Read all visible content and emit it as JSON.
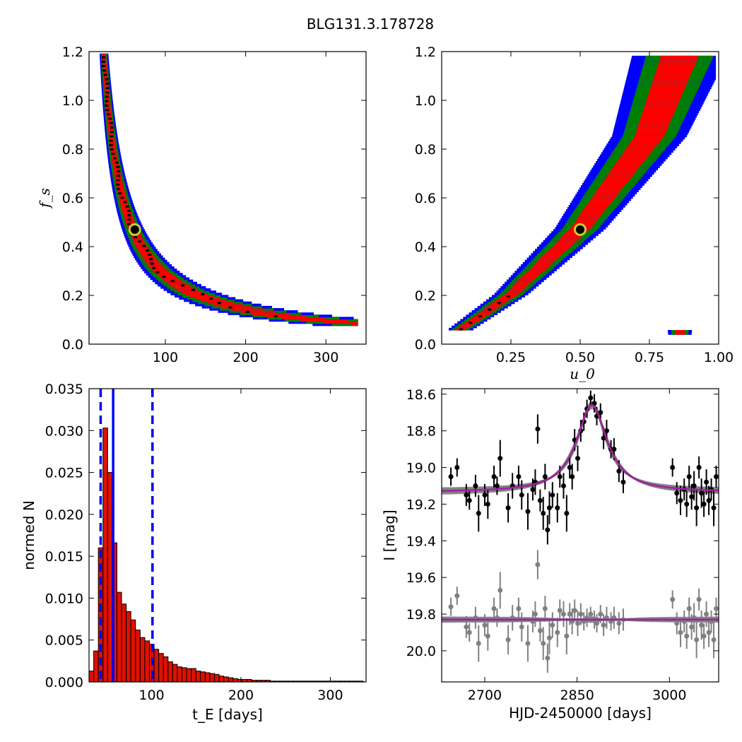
{
  "title": "BLG131.3.178728",
  "colors": {
    "sigma1": "#ff0000",
    "sigma2": "#008000",
    "sigma3": "#0000ff",
    "peak": "#000000",
    "best_fit_marker": "#cccc33",
    "hist_bar": "#dd1100",
    "hist_lines": "#0000ff",
    "data_black": "#000000",
    "data_gray": "#808080",
    "model_gray": "#808080",
    "model_best": "#a020a0"
  },
  "chart_data": [
    {
      "id": "te-fs",
      "type": "heatmap",
      "xlabel": "",
      "ylabel": "f_s",
      "xlim": [
        5,
        350
      ],
      "ylim": [
        0,
        1.2
      ],
      "xticks": [
        100,
        200,
        300
      ],
      "xticklabels": [
        "100",
        "200",
        "300"
      ],
      "yticks": [
        0.0,
        0.2,
        0.4,
        0.6,
        0.8,
        1.0,
        1.2
      ],
      "yticklabels": [
        "0.0",
        "0.2",
        "0.4",
        "0.6",
        "0.8",
        "1.0",
        "1.2"
      ],
      "relation": "t_E * f_s ~ 28 (posterior ridge)",
      "ridge_constant": 28,
      "best_fit": {
        "x": 62,
        "y": 0.47
      },
      "confidence_levels": [
        "1-sigma (red)",
        "2-sigma (green)",
        "3-sigma (blue)",
        "peak (black)"
      ],
      "curve_extent_x": [
        30,
        340
      ]
    },
    {
      "id": "u0-fs",
      "type": "heatmap",
      "xlabel": "u_0",
      "ylabel": "",
      "xlim": [
        0,
        1
      ],
      "ylim": [
        0,
        1.2
      ],
      "xticks": [
        0.25,
        0.5,
        0.75,
        1.0
      ],
      "xticklabels": [
        "0.25",
        "0.50",
        "0.75",
        "1.00"
      ],
      "yticks": [
        0.0,
        0.2,
        0.4,
        0.6,
        0.8,
        1.0,
        1.2
      ],
      "yticklabels": [
        "0.0",
        "0.2",
        "0.4",
        "0.6",
        "0.8",
        "1.0",
        "1.2"
      ],
      "relation": "f_s increases with u_0 along a band",
      "ridge": [
        [
          0.06,
          0.05
        ],
        [
          0.25,
          0.2
        ],
        [
          0.5,
          0.47
        ],
        [
          0.75,
          0.85
        ],
        [
          0.86,
          1.18
        ]
      ],
      "best_fit": {
        "x": 0.5,
        "y": 0.47
      }
    },
    {
      "id": "te-hist",
      "type": "bar",
      "xlabel": "t_E  [days]",
      "ylabel": "normed N",
      "xlim": [
        30,
        340
      ],
      "ylim": [
        0,
        0.035
      ],
      "xticks": [
        100,
        200,
        300
      ],
      "xticklabels": [
        "100",
        "200",
        "300"
      ],
      "yticks": [
        0.0,
        0.005,
        0.01,
        0.015,
        0.02,
        0.025,
        0.03,
        0.035
      ],
      "yticklabels": [
        "0.000",
        "0.005",
        "0.010",
        "0.015",
        "0.020",
        "0.025",
        "0.030",
        "0.035"
      ],
      "bin_width": 5.2,
      "bins_start": 30,
      "values": [
        0.0013,
        0.0037,
        0.016,
        0.0303,
        0.025,
        0.0166,
        0.0107,
        0.0093,
        0.0084,
        0.0074,
        0.0062,
        0.0053,
        0.0049,
        0.0045,
        0.0039,
        0.0034,
        0.003,
        0.0024,
        0.0021,
        0.0018,
        0.0017,
        0.0016,
        0.0016,
        0.0013,
        0.0012,
        0.0011,
        0.001,
        0.0009,
        0.0007,
        0.0006,
        0.0005,
        0.0004,
        0.0003,
        0.0003,
        0.0003,
        0.0002,
        0.0002,
        0.0002,
        0.0002,
        0.0001,
        0.0001,
        0.0001,
        0.0001,
        0.0001,
        0.0001,
        0.0001,
        0.0001,
        0.0001,
        0.0001,
        0.0001,
        0.0001,
        0.0001,
        0.0001,
        0.0001,
        0.0001,
        0.0001,
        0.0001,
        0.0001,
        0.0001
      ],
      "median": 57,
      "bounds": [
        43,
        101
      ]
    },
    {
      "id": "lightcurve",
      "type": "scatter",
      "xlabel": "HJD-2450000 [days]",
      "ylabel": "I [mag]",
      "xlim": [
        2630,
        3080
      ],
      "ylim": [
        20.17,
        18.57
      ],
      "y_inverted": true,
      "xticks": [
        2700,
        2850,
        3000
      ],
      "xticklabels": [
        "2700",
        "2850",
        "3000"
      ],
      "yticks": [
        18.6,
        18.8,
        19.0,
        19.2,
        19.4,
        19.6,
        19.8,
        20.0
      ],
      "yticklabels": [
        "18.6",
        "18.8",
        "19.0",
        "19.2",
        "19.4",
        "19.6",
        "19.8",
        "20.0"
      ],
      "model": {
        "t0": 2874,
        "baseline": 19.135,
        "peak": 18.66,
        "width": 30
      },
      "residual_baseline": 19.83,
      "series": [
        {
          "name": "",
          "color": "black",
          "points": [
            [
              2645,
              19.05,
              0.05
            ],
            [
              2655,
              19.0,
              0.05
            ],
            [
              2670,
              19.15,
              0.06
            ],
            [
              2675,
              19.18,
              0.05
            ],
            [
              2685,
              19.1,
              0.06
            ],
            [
              2690,
              19.25,
              0.1
            ],
            [
              2700,
              19.15,
              0.06
            ],
            [
              2705,
              19.2,
              0.08
            ],
            [
              2715,
              19.05,
              0.06
            ],
            [
              2720,
              19.1,
              0.05
            ],
            [
              2725,
              18.95,
              0.1
            ],
            [
              2738,
              19.22,
              0.08
            ],
            [
              2745,
              19.1,
              0.07
            ],
            [
              2755,
              19.05,
              0.06
            ],
            [
              2760,
              19.15,
              0.08
            ],
            [
              2770,
              19.24,
              0.1
            ],
            [
              2778,
              19.12,
              0.06
            ],
            [
              2782,
              19.08,
              0.07
            ],
            [
              2786,
              18.79,
              0.08
            ],
            [
              2790,
              19.18,
              0.06
            ],
            [
              2795,
              19.25,
              0.09
            ],
            [
              2798,
              19.05,
              0.07
            ],
            [
              2802,
              19.34,
              0.08
            ],
            [
              2805,
              19.22,
              0.09
            ],
            [
              2810,
              19.15,
              0.07
            ],
            [
              2818,
              19.22,
              0.08
            ],
            [
              2822,
              19.05,
              0.06
            ],
            [
              2828,
              19.1,
              0.07
            ],
            [
              2833,
              19.25,
              0.1
            ],
            [
              2838,
              19.0,
              0.06
            ],
            [
              2842,
              19.05,
              0.07
            ],
            [
              2846,
              18.85,
              0.06
            ],
            [
              2851,
              18.95,
              0.07
            ],
            [
              2856,
              18.8,
              0.06
            ],
            [
              2861,
              18.75,
              0.05
            ],
            [
              2866,
              18.68,
              0.05
            ],
            [
              2872,
              18.62,
              0.04
            ],
            [
              2878,
              18.65,
              0.05
            ],
            [
              2882,
              18.72,
              0.05
            ],
            [
              2888,
              18.7,
              0.05
            ],
            [
              2893,
              18.84,
              0.06
            ],
            [
              2898,
              18.8,
              0.06
            ],
            [
              2905,
              18.9,
              0.05
            ],
            [
              2910,
              18.9,
              0.06
            ],
            [
              2918,
              19.02,
              0.06
            ],
            [
              2925,
              19.08,
              0.06
            ],
            [
              3005,
              19.0,
              0.05
            ],
            [
              3012,
              19.14,
              0.06
            ],
            [
              3018,
              19.18,
              0.08
            ],
            [
              3024,
              19.12,
              0.06
            ],
            [
              3028,
              19.2,
              0.07
            ],
            [
              3032,
              19.05,
              0.06
            ],
            [
              3036,
              19.16,
              0.07
            ],
            [
              3040,
              19.1,
              0.08
            ],
            [
              3044,
              19.22,
              0.1
            ],
            [
              3048,
              19.0,
              0.06
            ],
            [
              3052,
              19.14,
              0.08
            ],
            [
              3056,
              19.2,
              0.07
            ],
            [
              3060,
              19.08,
              0.07
            ],
            [
              3064,
              19.18,
              0.08
            ],
            [
              3068,
              19.12,
              0.06
            ],
            [
              3072,
              19.22,
              0.1
            ],
            [
              3076,
              19.05,
              0.06
            ]
          ]
        },
        {
          "name": "",
          "color": "gray",
          "points": [
            [
              2645,
              19.76,
              0.05
            ],
            [
              2655,
              19.7,
              0.05
            ],
            [
              2670,
              19.87,
              0.06
            ],
            [
              2675,
              19.9,
              0.05
            ],
            [
              2685,
              19.82,
              0.06
            ],
            [
              2690,
              19.96,
              0.1
            ],
            [
              2700,
              19.86,
              0.06
            ],
            [
              2705,
              19.92,
              0.08
            ],
            [
              2715,
              19.77,
              0.06
            ],
            [
              2720,
              19.82,
              0.05
            ],
            [
              2725,
              19.67,
              0.1
            ],
            [
              2738,
              19.94,
              0.08
            ],
            [
              2745,
              19.82,
              0.07
            ],
            [
              2755,
              19.77,
              0.06
            ],
            [
              2760,
              19.87,
              0.08
            ],
            [
              2770,
              19.96,
              0.1
            ],
            [
              2778,
              19.84,
              0.06
            ],
            [
              2782,
              19.8,
              0.07
            ],
            [
              2786,
              19.53,
              0.08
            ],
            [
              2790,
              19.89,
              0.06
            ],
            [
              2795,
              19.96,
              0.09
            ],
            [
              2798,
              19.77,
              0.07
            ],
            [
              2802,
              20.04,
              0.08
            ],
            [
              2805,
              19.93,
              0.09
            ],
            [
              2810,
              19.86,
              0.07
            ],
            [
              2818,
              19.9,
              0.08
            ],
            [
              2822,
              19.78,
              0.06
            ],
            [
              2828,
              19.8,
              0.07
            ],
            [
              2833,
              19.92,
              0.1
            ],
            [
              2838,
              19.8,
              0.06
            ],
            [
              2842,
              19.84,
              0.07
            ],
            [
              2846,
              19.78,
              0.06
            ],
            [
              2851,
              19.85,
              0.07
            ],
            [
              2856,
              19.8,
              0.06
            ],
            [
              2861,
              19.84,
              0.05
            ],
            [
              2866,
              19.82,
              0.05
            ],
            [
              2872,
              19.8,
              0.04
            ],
            [
              2878,
              19.83,
              0.05
            ],
            [
              2882,
              19.85,
              0.05
            ],
            [
              2888,
              19.8,
              0.05
            ],
            [
              2893,
              19.86,
              0.06
            ],
            [
              2898,
              19.82,
              0.06
            ],
            [
              2905,
              19.84,
              0.05
            ],
            [
              2910,
              19.82,
              0.06
            ],
            [
              2918,
              19.85,
              0.06
            ],
            [
              2925,
              19.83,
              0.06
            ],
            [
              3005,
              19.72,
              0.05
            ],
            [
              3012,
              19.85,
              0.06
            ],
            [
              3018,
              19.9,
              0.08
            ],
            [
              3024,
              19.84,
              0.06
            ],
            [
              3028,
              19.92,
              0.07
            ],
            [
              3032,
              19.77,
              0.06
            ],
            [
              3036,
              19.87,
              0.07
            ],
            [
              3040,
              19.82,
              0.08
            ],
            [
              3044,
              19.94,
              0.1
            ],
            [
              3048,
              19.72,
              0.06
            ],
            [
              3052,
              19.86,
              0.08
            ],
            [
              3056,
              19.92,
              0.07
            ],
            [
              3060,
              19.8,
              0.07
            ],
            [
              3064,
              19.9,
              0.08
            ],
            [
              3068,
              19.84,
              0.06
            ],
            [
              3072,
              19.94,
              0.1
            ],
            [
              3076,
              19.77,
              0.06
            ]
          ]
        }
      ]
    }
  ]
}
